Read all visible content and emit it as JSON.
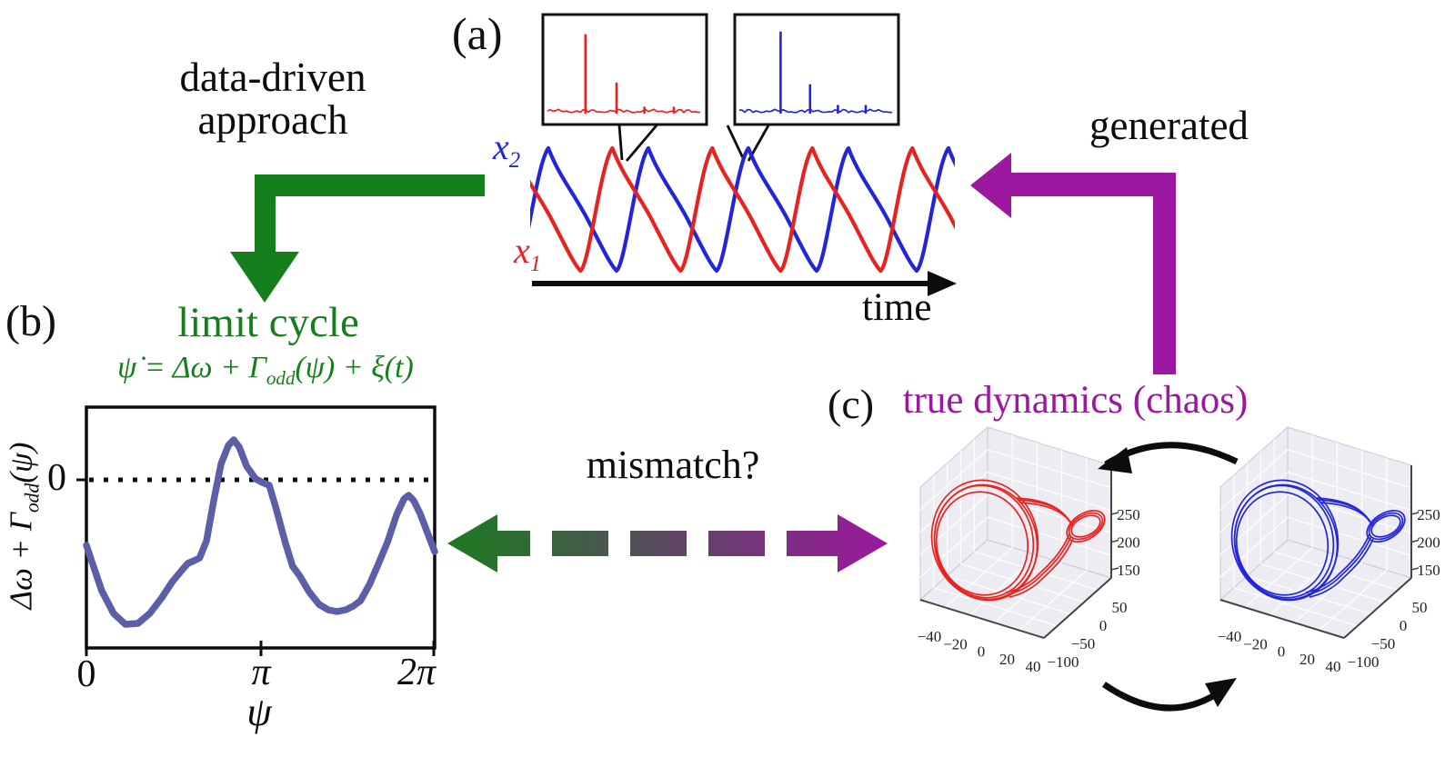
{
  "colors": {
    "green": "#15801b",
    "purple": "#9d18a0",
    "red": "#e8231f",
    "blue": "#2326d8",
    "slate_curve": "#5a5fa8",
    "black": "#0c0c0c"
  },
  "arrows": {
    "data_driven_line1": "data-driven",
    "data_driven_line2": "approach",
    "generated": "generated",
    "mismatch": "mismatch?"
  },
  "panel_a": {
    "label": "(a)",
    "x1": {
      "base": "x",
      "sub": "1"
    },
    "x2": {
      "base": "x",
      "sub": "2"
    },
    "time": "time"
  },
  "panel_b": {
    "label": "(b)",
    "title": "limit cycle",
    "equation": {
      "pre": "ψ̇ = Δω + Γ",
      "sub": "odd",
      "post": "(ψ) + ξ(t)"
    },
    "ylabel": {
      "pre": "Δω + Γ",
      "sub": "odd",
      "post": "(ψ)"
    },
    "ytick_zero": "0",
    "xticks": [
      "0",
      "π",
      "2π"
    ],
    "xlabel": "ψ"
  },
  "panel_c": {
    "label": "(c)",
    "title": "true dynamics (chaos)"
  },
  "chart_data": [
    {
      "id": "power_spectrum_x1",
      "type": "line",
      "legend": "power spectrum of x1 (red)",
      "spikes_x_fraction_height": [
        [
          0.26,
          0.92
        ],
        [
          0.45,
          0.36
        ],
        [
          0.62,
          0.08
        ],
        [
          0.8,
          0.08
        ]
      ],
      "noise_level": 0.04,
      "axes_labeled": false
    },
    {
      "id": "power_spectrum_x2",
      "type": "line",
      "legend": "power spectrum of x2 (blue)",
      "spikes_x_fraction_height": [
        [
          0.28,
          0.95
        ],
        [
          0.46,
          0.34
        ],
        [
          0.63,
          0.1
        ],
        [
          0.8,
          0.1
        ]
      ],
      "noise_level": 0.04,
      "axes_labeled": false
    },
    {
      "id": "timeseries",
      "type": "line",
      "xlabel": "time",
      "series": [
        {
          "name": "x2",
          "color_key": "blue",
          "first_peak_t": 0.0
        },
        {
          "name": "x1",
          "color_key": "red",
          "first_peak_t": 0.64
        }
      ],
      "period": 1.0,
      "n_cycles_shown": 4.2,
      "description": "two antiphase relaxation-like oscillations"
    },
    {
      "id": "coupling_function",
      "type": "line",
      "xlabel": "ψ",
      "ylabel": "Δω + Γodd(ψ)",
      "xticklabels": [
        "0",
        "π",
        "2π"
      ],
      "yticklabels": [
        "0"
      ],
      "xlim_units_of_2pi": [
        0,
        1
      ],
      "zero_line": "dotted",
      "points_xfrac_value": [
        [
          0.0,
          -0.72
        ],
        [
          0.013,
          -0.87
        ],
        [
          0.044,
          -1.22
        ],
        [
          0.078,
          -1.47
        ],
        [
          0.112,
          -1.59
        ],
        [
          0.148,
          -1.58
        ],
        [
          0.182,
          -1.47
        ],
        [
          0.216,
          -1.3
        ],
        [
          0.247,
          -1.12
        ],
        [
          0.273,
          -1.0
        ],
        [
          0.291,
          -0.92
        ],
        [
          0.309,
          -0.89
        ],
        [
          0.325,
          -0.86
        ],
        [
          0.345,
          -0.67
        ],
        [
          0.366,
          -0.22
        ],
        [
          0.387,
          0.18
        ],
        [
          0.408,
          0.38
        ],
        [
          0.423,
          0.44
        ],
        [
          0.439,
          0.36
        ],
        [
          0.46,
          0.15
        ],
        [
          0.486,
          0.01
        ],
        [
          0.506,
          -0.03
        ],
        [
          0.525,
          -0.06
        ],
        [
          0.545,
          -0.32
        ],
        [
          0.571,
          -0.69
        ],
        [
          0.592,
          -0.95
        ],
        [
          0.613,
          -1.06
        ],
        [
          0.639,
          -1.23
        ],
        [
          0.668,
          -1.37
        ],
        [
          0.694,
          -1.43
        ],
        [
          0.719,
          -1.45
        ],
        [
          0.745,
          -1.43
        ],
        [
          0.766,
          -1.39
        ],
        [
          0.787,
          -1.33
        ],
        [
          0.813,
          -1.15
        ],
        [
          0.839,
          -0.92
        ],
        [
          0.865,
          -0.68
        ],
        [
          0.891,
          -0.38
        ],
        [
          0.912,
          -0.21
        ],
        [
          0.925,
          -0.17
        ],
        [
          0.94,
          -0.23
        ],
        [
          0.958,
          -0.37
        ],
        [
          0.979,
          -0.58
        ],
        [
          1.0,
          -0.79
        ]
      ]
    },
    {
      "id": "attractor_x1",
      "type": "line3d",
      "color_key": "red",
      "xticklabels": [
        "−40",
        "−20",
        "0",
        "20",
        "40"
      ],
      "yticklabels": [
        "50",
        "0",
        "−50",
        "−100"
      ],
      "zticklabels": [
        "250",
        "200",
        "150"
      ],
      "description": "chaotic attractor: large loop with small folded loop"
    },
    {
      "id": "attractor_x2",
      "type": "line3d",
      "color_key": "blue",
      "xticklabels": [
        "−40",
        "−20",
        "0",
        "20",
        "40"
      ],
      "yticklabels": [
        "50",
        "0",
        "−50",
        "−100"
      ],
      "zticklabels": [
        "250",
        "200",
        "150"
      ],
      "description": "chaotic attractor: large loop with small folded loop"
    }
  ]
}
